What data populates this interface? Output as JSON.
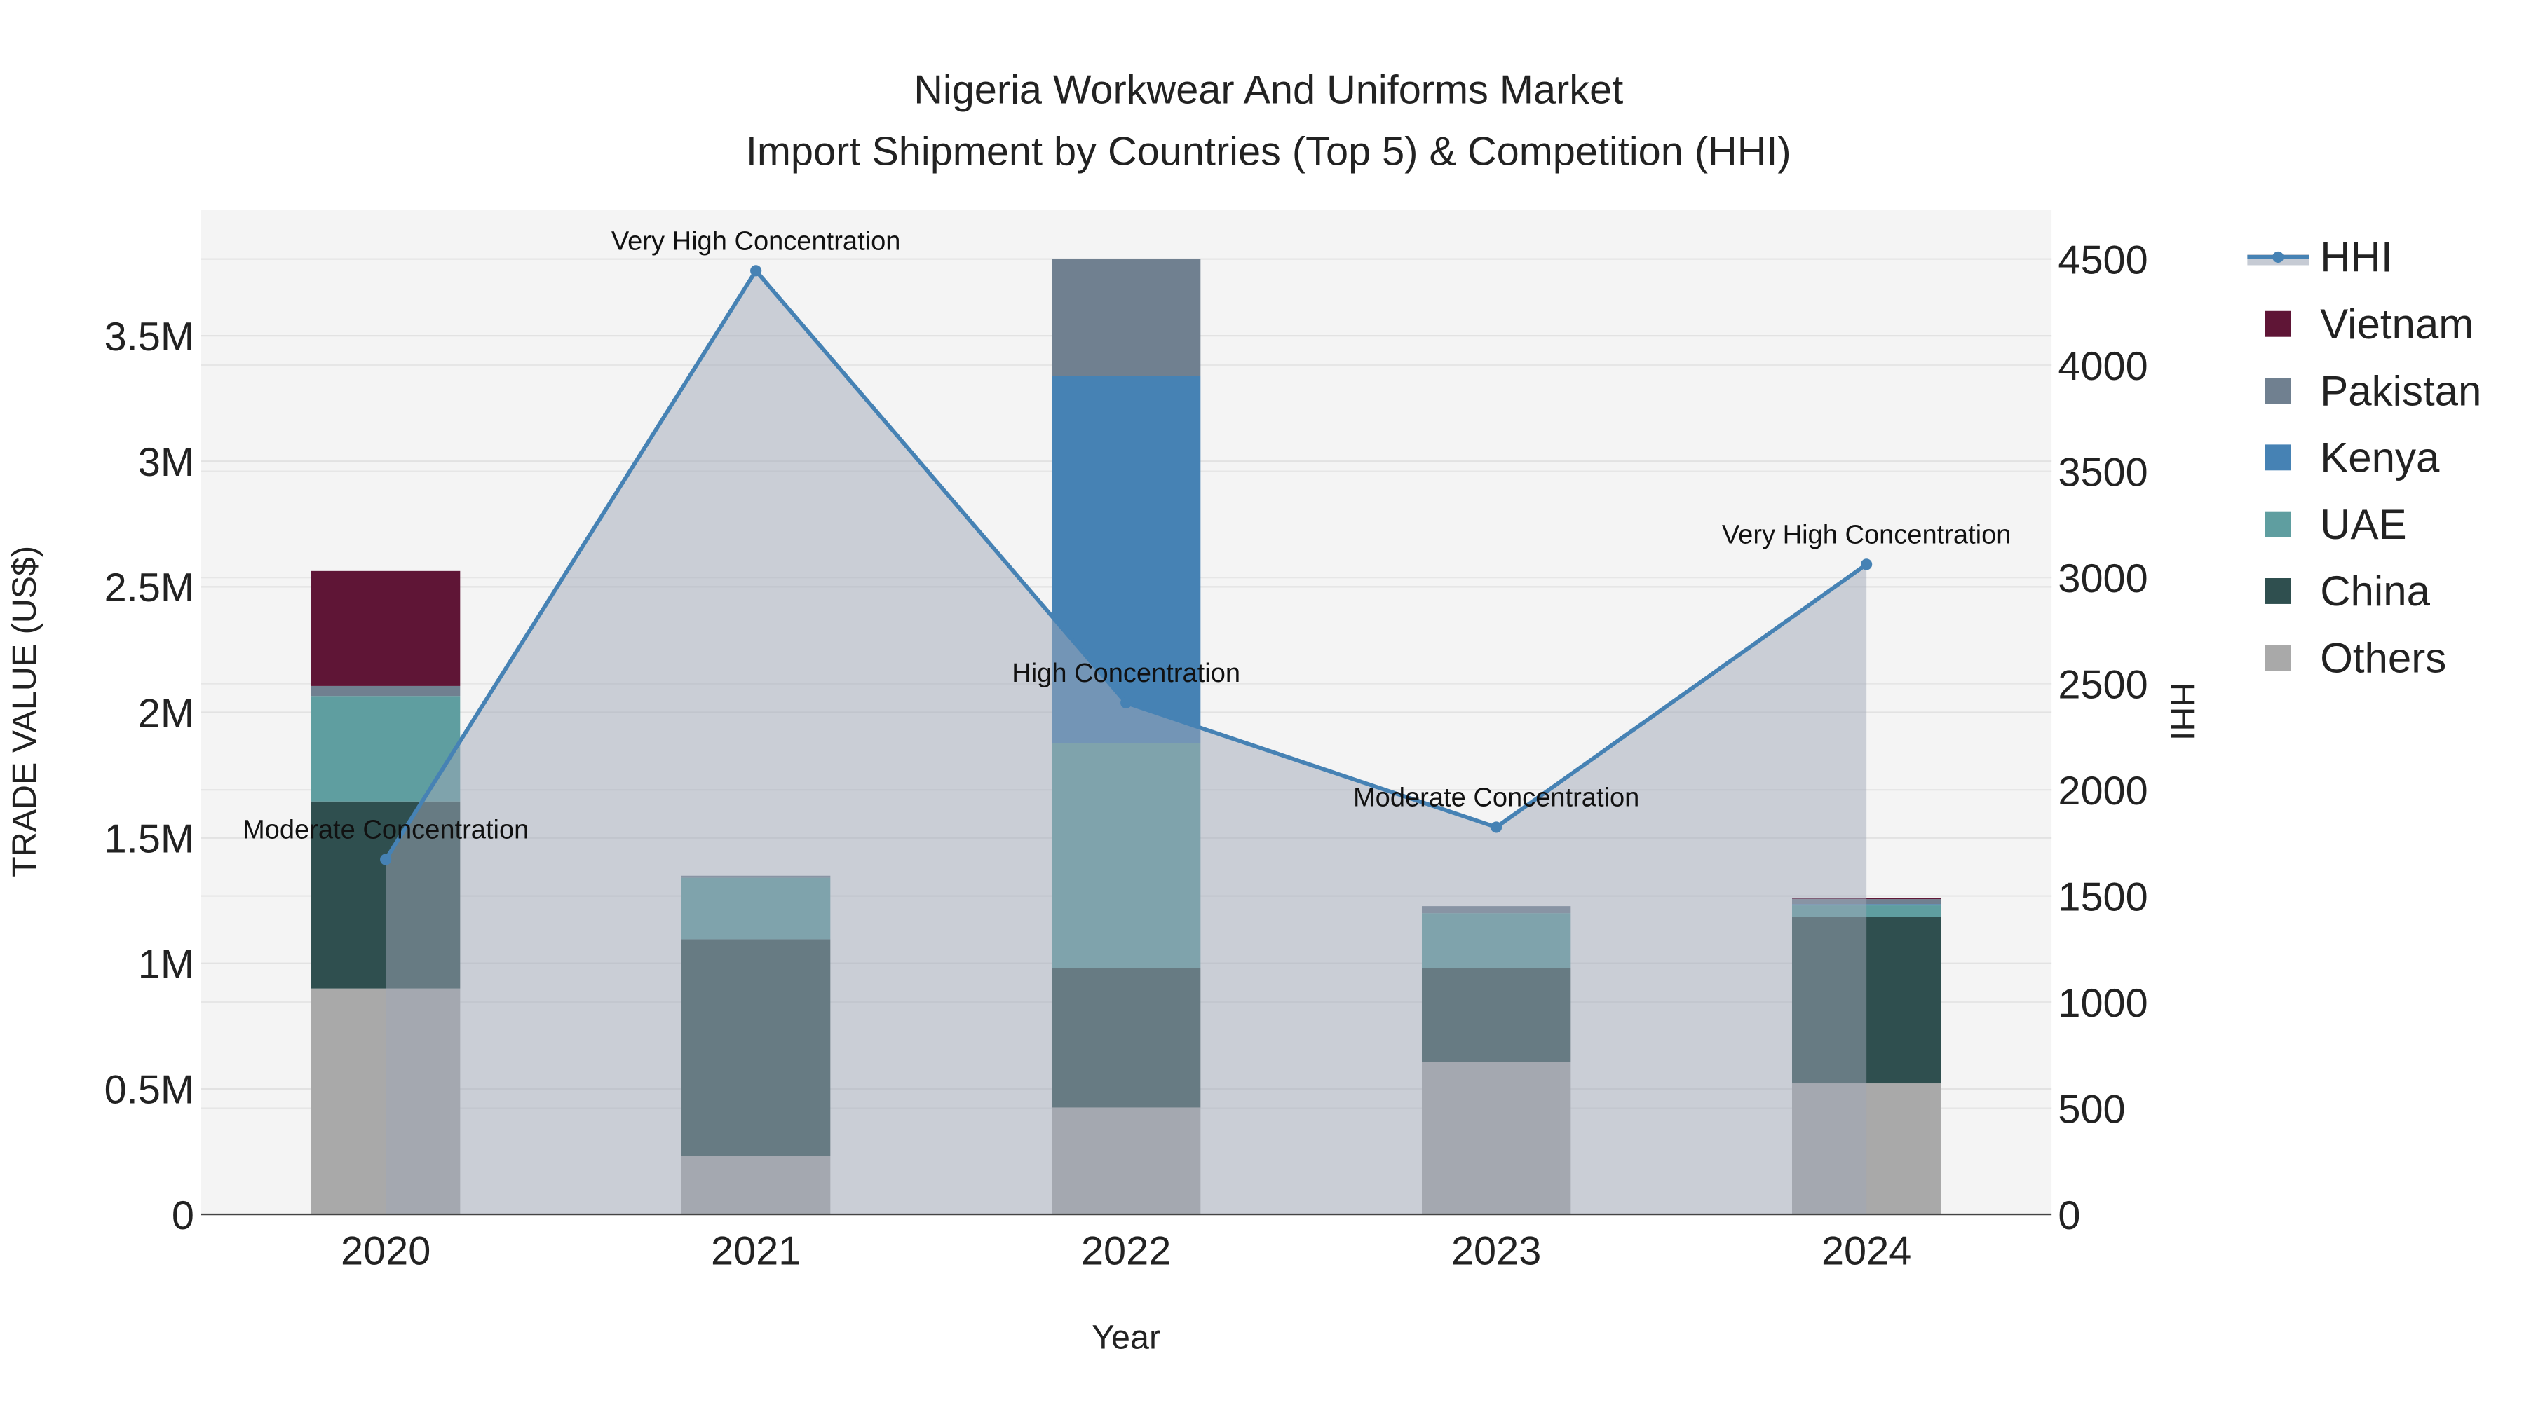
{
  "chart_data": {
    "type": "bar",
    "title_line1": "Nigeria Workwear And Uniforms Market",
    "title_line2": "Import Shipment by Countries (Top 5) & Competition (HHI)",
    "xlabel": "Year",
    "ylabel": "TRADE VALUE (US$)",
    "y2label": "HHI",
    "categories": [
      "2020",
      "2021",
      "2022",
      "2023",
      "2024"
    ],
    "ylim": [
      0,
      4000000
    ],
    "y2lim": [
      0,
      4730
    ],
    "yticks": [
      {
        "v": 0,
        "label": "0"
      },
      {
        "v": 500000,
        "label": "0.5M"
      },
      {
        "v": 1000000,
        "label": "1M"
      },
      {
        "v": 1500000,
        "label": "1.5M"
      },
      {
        "v": 2000000,
        "label": "2M"
      },
      {
        "v": 2500000,
        "label": "2.5M"
      },
      {
        "v": 3000000,
        "label": "3M"
      },
      {
        "v": 3500000,
        "label": "3.5M"
      }
    ],
    "y2ticks": [
      {
        "v": 0,
        "label": "0"
      },
      {
        "v": 500,
        "label": "500"
      },
      {
        "v": 1000,
        "label": "1000"
      },
      {
        "v": 1500,
        "label": "1500"
      },
      {
        "v": 2000,
        "label": "2000"
      },
      {
        "v": 2500,
        "label": "2500"
      },
      {
        "v": 3000,
        "label": "3000"
      },
      {
        "v": 3500,
        "label": "3500"
      },
      {
        "v": 4000,
        "label": "4000"
      },
      {
        "v": 4500,
        "label": "4500"
      }
    ],
    "series": [
      {
        "name": "Others",
        "color": "#a9a9a9",
        "values": [
          900000,
          232000,
          426000,
          606000,
          522000
        ]
      },
      {
        "name": "China",
        "color": "#2f4f4f",
        "values": [
          745000,
          864000,
          555000,
          374000,
          664000
        ]
      },
      {
        "name": "UAE",
        "color": "#5f9ea0",
        "values": [
          420000,
          245000,
          896000,
          220000,
          45000
        ]
      },
      {
        "name": "Kenya",
        "color": "#4682b4",
        "values": [
          0,
          0,
          1464000,
          0,
          5000
        ]
      },
      {
        "name": "Pakistan",
        "color": "#708090",
        "values": [
          40000,
          8000,
          464000,
          28000,
          20000
        ]
      },
      {
        "name": "Vietnam",
        "color": "#5f1536",
        "values": [
          458000,
          0,
          0,
          0,
          3000
        ]
      }
    ],
    "hhi": {
      "name": "HHI",
      "color": "#4682b4",
      "values": [
        1672,
        4445,
        2410,
        1824,
        3062
      ],
      "annotations": [
        "Moderate Concentration",
        "Very High Concentration",
        "High Concentration",
        "Moderate Concentration",
        "Very High Concentration"
      ]
    },
    "legend": [
      "HHI",
      "Vietnam",
      "Pakistan",
      "Kenya",
      "UAE",
      "China",
      "Others"
    ],
    "legend_placement": "right"
  }
}
